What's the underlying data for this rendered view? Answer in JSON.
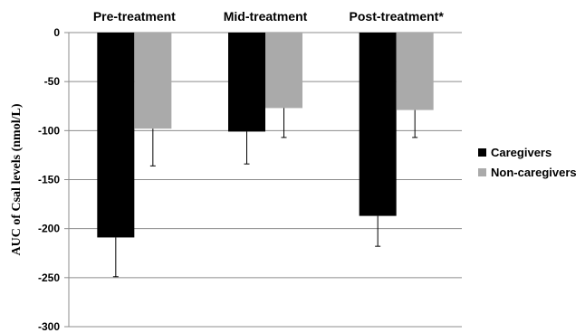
{
  "chart_data": {
    "type": "bar",
    "categories": [
      "Pre-treatment",
      "Mid-treatment",
      "Post-treatment*"
    ],
    "series": [
      {
        "name": "Caregivers",
        "values": [
          -209,
          -101,
          -187
        ],
        "error": [
          40,
          33,
          31
        ],
        "color": "#000000"
      },
      {
        "name": "Non-caregivers",
        "values": [
          -98,
          -77,
          -79
        ],
        "error": [
          38,
          30,
          28
        ],
        "color": "#aaaaaa"
      }
    ],
    "ylabel": "AUC of Csal levels (nmol/L)",
    "ylim": [
      -300,
      0
    ],
    "yticks": [
      0,
      -50,
      -100,
      -150,
      -200,
      -250,
      -300
    ],
    "grid": true,
    "category_label_position": "top",
    "legend_position": "right"
  }
}
